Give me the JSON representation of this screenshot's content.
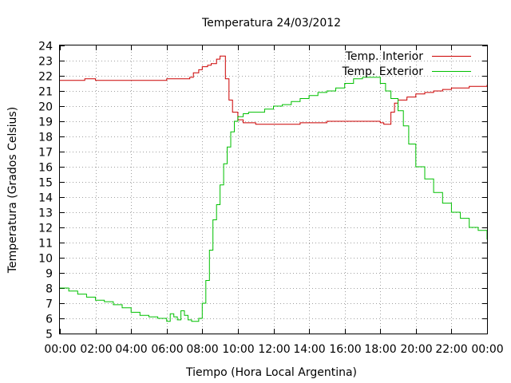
{
  "chart_data": {
    "type": "line",
    "title": "Temperatura 24/03/2012",
    "xlabel": "Tiempo (Hora Local Argentina)",
    "ylabel": "Temperatura (Grados Celsius)",
    "xlim": [
      0,
      24
    ],
    "ylim": [
      5,
      24
    ],
    "x_ticks": [
      "00:00",
      "02:00",
      "04:00",
      "06:00",
      "08:00",
      "10:00",
      "12:00",
      "14:00",
      "16:00",
      "18:00",
      "20:00",
      "22:00",
      "00:00"
    ],
    "y_ticks": [
      5,
      6,
      7,
      8,
      9,
      10,
      11,
      12,
      13,
      14,
      15,
      16,
      17,
      18,
      19,
      20,
      21,
      22,
      23,
      24
    ],
    "grid": true,
    "legend_position": "top-right",
    "series": [
      {
        "name": "Temp. Interior",
        "color": "#cc0000",
        "x": [
          0,
          1,
          1.4,
          2,
          3,
          4,
          5,
          5.7,
          6,
          6.5,
          7,
          7.3,
          7.5,
          7.8,
          8,
          8.3,
          8.5,
          8.8,
          9.0,
          9.1,
          9.3,
          9.5,
          9.7,
          10,
          10.3,
          10.6,
          11,
          12,
          13,
          13.5,
          14,
          15,
          16,
          17,
          17.5,
          18,
          18.2,
          18.4,
          18.6,
          18.8,
          19,
          19.5,
          20,
          20.5,
          21,
          21.5,
          22,
          23,
          24
        ],
        "y": [
          21.7,
          21.7,
          21.8,
          21.7,
          21.7,
          21.7,
          21.7,
          21.7,
          21.8,
          21.8,
          21.8,
          21.9,
          22.2,
          22.4,
          22.6,
          22.7,
          22.8,
          23.1,
          23.3,
          23.3,
          21.8,
          20.4,
          19.6,
          19.1,
          18.9,
          18.9,
          18.8,
          18.8,
          18.8,
          18.9,
          18.9,
          19.0,
          19.0,
          19.0,
          19.0,
          18.9,
          18.8,
          18.8,
          19.6,
          20.2,
          20.4,
          20.6,
          20.8,
          20.9,
          21.0,
          21.1,
          21.2,
          21.3,
          21.4
        ]
      },
      {
        "name": "Temp. Exterior",
        "color": "#00c000",
        "x": [
          0,
          0.5,
          1,
          1.5,
          2,
          2.5,
          3,
          3.5,
          4,
          4.5,
          5,
          5.5,
          6,
          6.2,
          6.4,
          6.6,
          6.8,
          7,
          7.2,
          7.4,
          7.6,
          7.8,
          8,
          8.2,
          8.4,
          8.6,
          8.8,
          9,
          9.2,
          9.4,
          9.6,
          9.8,
          10,
          10.3,
          10.6,
          11,
          11.5,
          12,
          12.5,
          13,
          13.5,
          14,
          14.5,
          15,
          15.5,
          16,
          16.5,
          17,
          17.5,
          18,
          18.3,
          18.6,
          19,
          19.3,
          19.6,
          20,
          20.5,
          21,
          21.5,
          22,
          22.5,
          23,
          23.5,
          24
        ],
        "y": [
          8.0,
          7.8,
          7.6,
          7.4,
          7.2,
          7.1,
          6.9,
          6.7,
          6.4,
          6.2,
          6.1,
          6.0,
          5.8,
          6.3,
          6.1,
          5.9,
          6.5,
          6.2,
          5.9,
          5.8,
          5.8,
          6.0,
          7.0,
          8.5,
          10.5,
          12.5,
          13.5,
          14.8,
          16.2,
          17.3,
          18.3,
          19.0,
          19.3,
          19.5,
          19.6,
          19.6,
          19.8,
          20.0,
          20.1,
          20.3,
          20.5,
          20.7,
          20.9,
          21.0,
          21.2,
          21.5,
          21.8,
          21.9,
          21.9,
          21.5,
          21.0,
          20.5,
          19.7,
          18.7,
          17.5,
          16.0,
          15.2,
          14.3,
          13.6,
          13.0,
          12.6,
          12.0,
          11.8,
          11.2
        ]
      }
    ]
  }
}
